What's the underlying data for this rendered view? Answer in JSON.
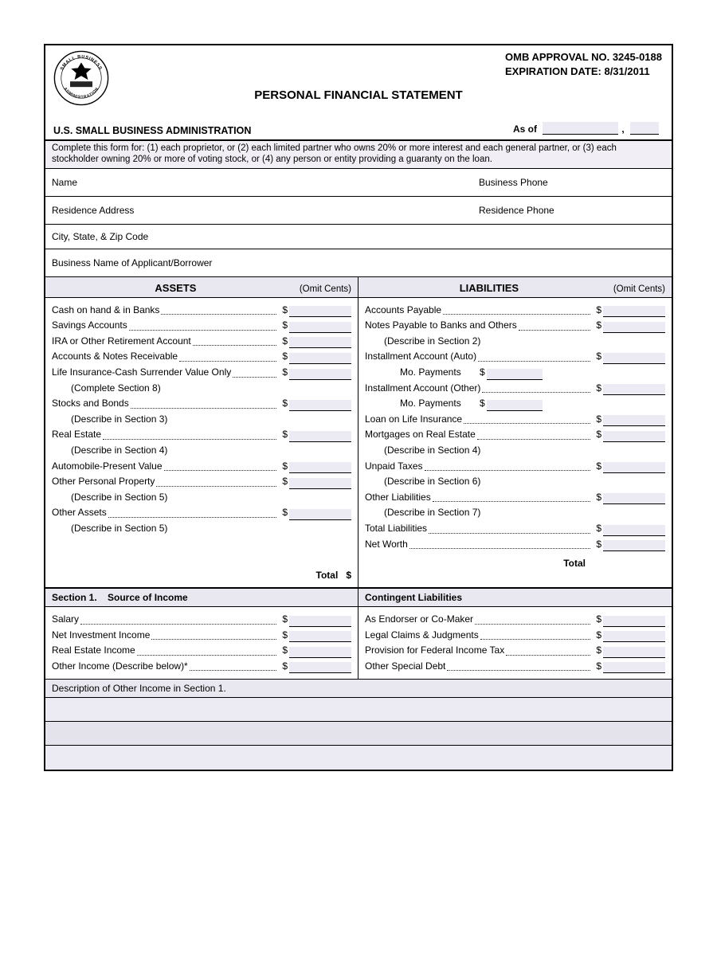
{
  "header": {
    "omb_line": "OMB APPROVAL NO. 3245-0188",
    "expiration": "EXPIRATION DATE: 8/31/2011",
    "title": "PERSONAL FINANCIAL STATEMENT",
    "agency": "U.S. SMALL BUSINESS ADMINISTRATION",
    "asof_label": "As of",
    "seal_text_top": "SMALL BUSINESS",
    "seal_text_bottom": "ADMINISTRATION"
  },
  "instructions": "Complete this form for: (1) each proprietor, or (2) each limited partner who owns 20% or more interest and each general partner, or (3) each stockholder owning 20% or more of voting stock, or (4) any person or entity providing a guaranty on the loan.",
  "ident": {
    "name": "Name",
    "business_phone": "Business Phone",
    "res_address": "Residence Address",
    "res_phone": "Residence Phone",
    "city_state_zip": "City, State, & Zip Code",
    "biz_name": "Business Name of Applicant/Borrower"
  },
  "col_headers": {
    "assets": "ASSETS",
    "liabilities": "LIABILITIES",
    "omit": "(Omit Cents)"
  },
  "assets": [
    {
      "label": "Cash on hand & in Banks",
      "type": "money"
    },
    {
      "label": "Savings Accounts",
      "type": "money"
    },
    {
      "label": "IRA or Other Retirement Account",
      "type": "money"
    },
    {
      "label": "Accounts & Notes Receivable",
      "type": "money"
    },
    {
      "label": "Life Insurance-Cash Surrender Value Only",
      "type": "money"
    },
    {
      "label": "(Complete Section 8)",
      "type": "desc"
    },
    {
      "label": "Stocks and Bonds",
      "type": "money"
    },
    {
      "label": "(Describe in Section 3)",
      "type": "desc"
    },
    {
      "label": "Real Estate",
      "type": "money"
    },
    {
      "label": "(Describe in Section 4)",
      "type": "desc"
    },
    {
      "label": "Automobile-Present Value",
      "type": "money"
    },
    {
      "label": "Other Personal Property",
      "type": "money"
    },
    {
      "label": "(Describe in Section 5)",
      "type": "desc"
    },
    {
      "label": "Other Assets",
      "type": "money"
    },
    {
      "label": "(Describe in Section 5)",
      "type": "desc"
    }
  ],
  "assets_total": "Total",
  "liabilities": [
    {
      "label": "Accounts Payable",
      "type": "money"
    },
    {
      "label": "Notes Payable to Banks and Others",
      "type": "money"
    },
    {
      "label": "(Describe in Section 2)",
      "type": "desc"
    },
    {
      "label": "Installment Account (Auto)",
      "type": "money"
    },
    {
      "label": "Mo. Payments",
      "type": "inner"
    },
    {
      "label": "Installment Account (Other)",
      "type": "money"
    },
    {
      "label": "Mo. Payments",
      "type": "inner"
    },
    {
      "label": "Loan on Life Insurance",
      "type": "money"
    },
    {
      "label": "Mortgages on Real Estate",
      "type": "money"
    },
    {
      "label": "(Describe in Section 4)",
      "type": "desc"
    },
    {
      "label": "Unpaid Taxes",
      "type": "money"
    },
    {
      "label": "(Describe in Section 6)",
      "type": "desc"
    },
    {
      "label": "Other Liabilities",
      "type": "money"
    },
    {
      "label": "(Describe in Section 7)",
      "type": "desc"
    },
    {
      "label": "Total Liabilities",
      "type": "money"
    },
    {
      "label": "Net Worth",
      "type": "money"
    }
  ],
  "liabilities_total": "Total",
  "section1": {
    "left_title": "Section 1.    Source of Income",
    "right_title": "Contingent Liabilities"
  },
  "income": [
    {
      "label": "Salary"
    },
    {
      "label": "Net Investment Income"
    },
    {
      "label": "Real Estate Income"
    },
    {
      "label": "Other Income (Describe below)*"
    }
  ],
  "contingent": [
    {
      "label": "As Endorser or Co-Maker"
    },
    {
      "label": "Legal Claims & Judgments"
    },
    {
      "label": "Provision for Federal Income Tax"
    },
    {
      "label": "Other Special Debt"
    }
  ],
  "desc_other_income": "Description of Other Income in Section 1.",
  "colors": {
    "border": "#000000",
    "fill_field": "#eceaf2",
    "shade_row": "#e9e7ef",
    "text": "#000000"
  },
  "currency_symbol": "$"
}
